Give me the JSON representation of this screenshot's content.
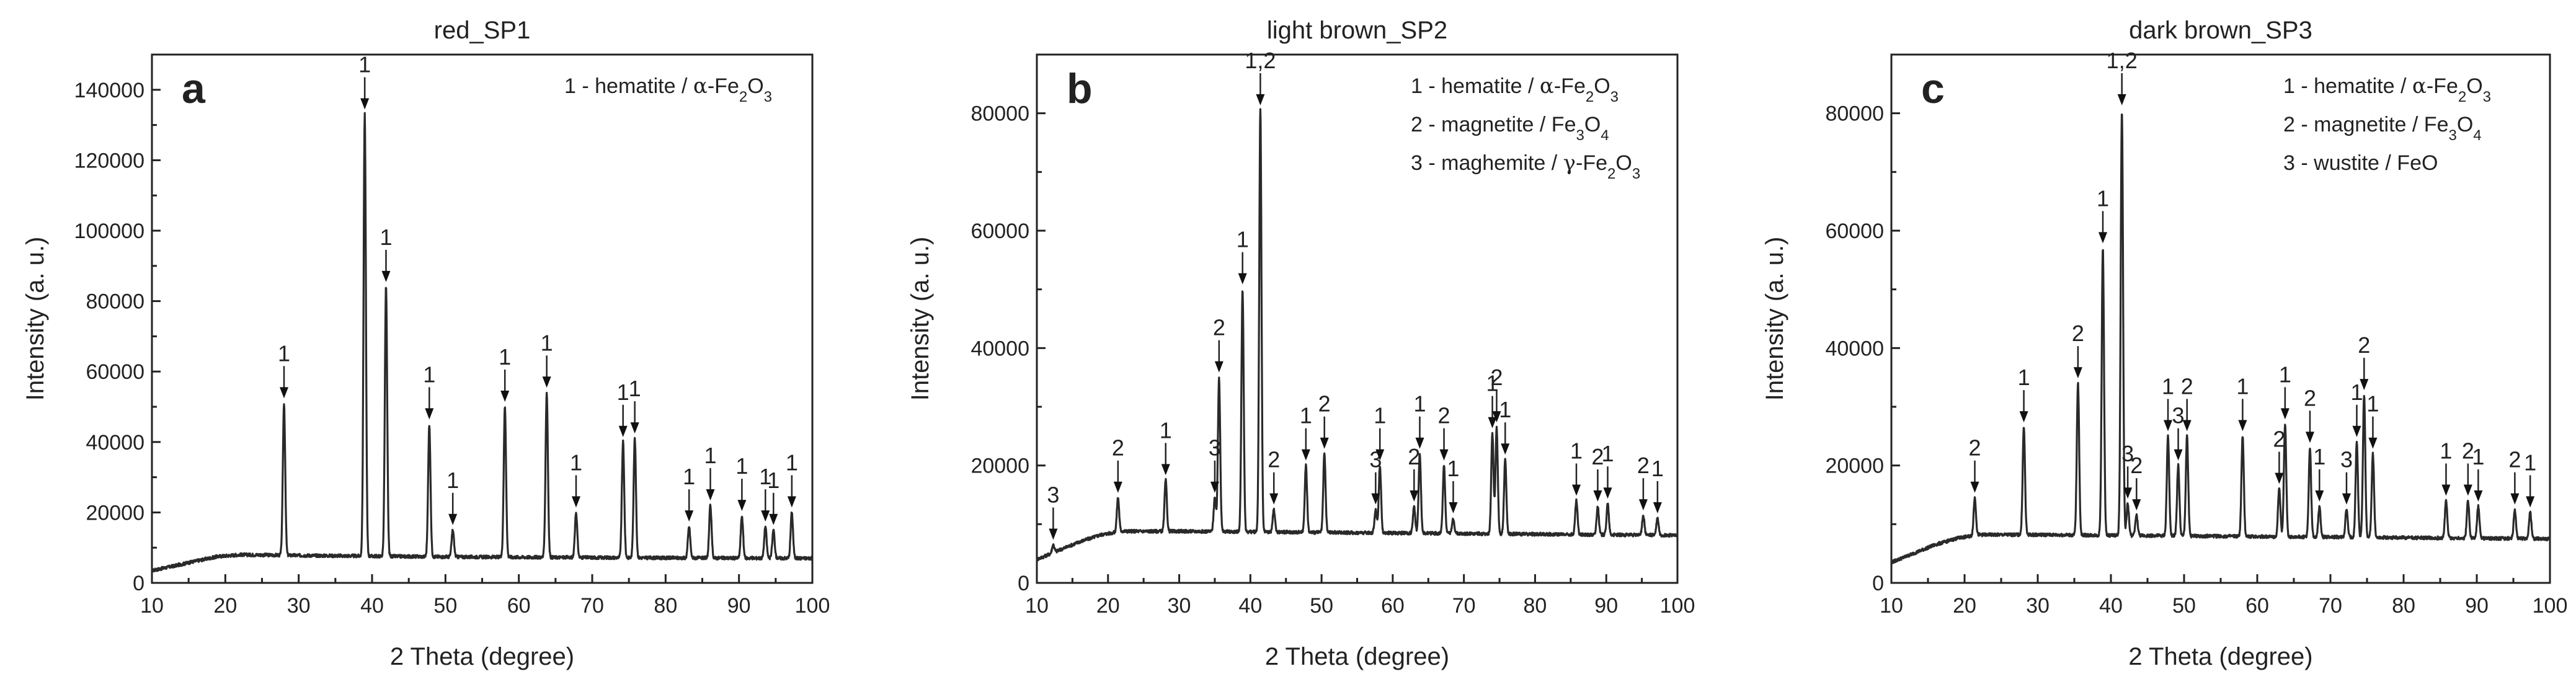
{
  "chart_data": [
    {
      "type": "line",
      "panel_letter": "a",
      "title": "red_SP1",
      "xlabel": "2 Theta (degree)",
      "ylabel": "Intensity (a. u.)",
      "xlim": [
        10,
        100
      ],
      "ylim": [
        0,
        150000
      ],
      "xticks": [
        10,
        20,
        30,
        40,
        50,
        60,
        70,
        80,
        90,
        100
      ],
      "yticks": [
        0,
        20000,
        40000,
        60000,
        80000,
        100000,
        120000,
        140000
      ],
      "background": [
        [
          10,
          3500
        ],
        [
          13,
          4800
        ],
        [
          16,
          6200
        ],
        [
          19,
          7500
        ],
        [
          22,
          8000
        ],
        [
          30,
          7800
        ],
        [
          40,
          7600
        ],
        [
          50,
          7400
        ],
        [
          60,
          7300
        ],
        [
          70,
          7200
        ],
        [
          80,
          7100
        ],
        [
          90,
          7050
        ],
        [
          100,
          7000
        ]
      ],
      "peaks": [
        {
          "x": 28.0,
          "y": 51000,
          "label": "1"
        },
        {
          "x": 39.0,
          "y": 133000,
          "label": "1"
        },
        {
          "x": 41.9,
          "y": 84000,
          "label": "1"
        },
        {
          "x": 47.8,
          "y": 45000,
          "label": "1"
        },
        {
          "x": 51.0,
          "y": 15000,
          "label": "1"
        },
        {
          "x": 58.1,
          "y": 50000,
          "label": "1"
        },
        {
          "x": 63.8,
          "y": 54000,
          "label": "1"
        },
        {
          "x": 67.8,
          "y": 20000,
          "label": "1"
        },
        {
          "x": 74.2,
          "y": 40000,
          "label": "1"
        },
        {
          "x": 75.8,
          "y": 41000,
          "label": "1"
        },
        {
          "x": 83.2,
          "y": 16000,
          "label": "1"
        },
        {
          "x": 86.1,
          "y": 22000,
          "label": "1"
        },
        {
          "x": 90.4,
          "y": 19000,
          "label": "1"
        },
        {
          "x": 93.6,
          "y": 16000,
          "label": "1"
        },
        {
          "x": 94.7,
          "y": 15000,
          "label": "1"
        },
        {
          "x": 97.2,
          "y": 20000,
          "label": "1"
        }
      ],
      "legend": [
        {
          "num": "1",
          "text": " - hematite / ",
          "greek": "α",
          "formula": [
            [
              "-Fe",
              ""
            ],
            [
              "2",
              "sub"
            ],
            [
              "O",
              ""
            ],
            [
              "3",
              "sub"
            ]
          ]
        }
      ]
    },
    {
      "type": "line",
      "panel_letter": "b",
      "title": "light brown_SP2",
      "xlabel": "2 Theta (degree)",
      "ylabel": "Intensity (a. u.)",
      "xlim": [
        10,
        100
      ],
      "ylim": [
        0,
        90000
      ],
      "xticks": [
        10,
        20,
        30,
        40,
        50,
        60,
        70,
        80,
        90,
        100
      ],
      "yticks": [
        0,
        20000,
        40000,
        60000,
        80000
      ],
      "background": [
        [
          10,
          4000
        ],
        [
          13,
          5500
        ],
        [
          16,
          7000
        ],
        [
          19,
          8200
        ],
        [
          22,
          8800
        ],
        [
          30,
          8800
        ],
        [
          40,
          8700
        ],
        [
          50,
          8600
        ],
        [
          60,
          8500
        ],
        [
          70,
          8400
        ],
        [
          80,
          8300
        ],
        [
          90,
          8200
        ],
        [
          100,
          8100
        ]
      ],
      "peaks": [
        {
          "x": 12.3,
          "y": 6500,
          "label": "3"
        },
        {
          "x": 21.4,
          "y": 14500,
          "label": "2"
        },
        {
          "x": 28.1,
          "y": 17500,
          "label": "1"
        },
        {
          "x": 35.0,
          "y": 14500,
          "label": "3"
        },
        {
          "x": 35.6,
          "y": 35000,
          "label": "2"
        },
        {
          "x": 38.9,
          "y": 50000,
          "label": "1"
        },
        {
          "x": 41.4,
          "y": 80500,
          "label": "1,2"
        },
        {
          "x": 43.3,
          "y": 12500,
          "label": "2"
        },
        {
          "x": 47.8,
          "y": 20000,
          "label": "1"
        },
        {
          "x": 50.4,
          "y": 22000,
          "label": "2"
        },
        {
          "x": 57.6,
          "y": 12500,
          "label": "3"
        },
        {
          "x": 58.2,
          "y": 20000,
          "label": "1"
        },
        {
          "x": 63.0,
          "y": 13000,
          "label": "2"
        },
        {
          "x": 63.8,
          "y": 22000,
          "label": "1"
        },
        {
          "x": 67.2,
          "y": 20000,
          "label": "2"
        },
        {
          "x": 68.5,
          "y": 11000,
          "label": "1"
        },
        {
          "x": 74.0,
          "y": 25500,
          "label": "1"
        },
        {
          "x": 74.6,
          "y": 26500,
          "label": "2"
        },
        {
          "x": 75.8,
          "y": 21000,
          "label": "1"
        },
        {
          "x": 85.8,
          "y": 14000,
          "label": "1"
        },
        {
          "x": 88.8,
          "y": 13000,
          "label": "2"
        },
        {
          "x": 90.2,
          "y": 13500,
          "label": "1"
        },
        {
          "x": 95.2,
          "y": 11500,
          "label": "2"
        },
        {
          "x": 97.2,
          "y": 11000,
          "label": "1"
        }
      ],
      "legend": [
        {
          "num": "1",
          "text": " - hematite / ",
          "greek": "α",
          "formula": [
            [
              "-Fe",
              ""
            ],
            [
              "2",
              "sub"
            ],
            [
              "O",
              ""
            ],
            [
              "3",
              "sub"
            ]
          ]
        },
        {
          "num": "2",
          "text": " - magnetite / ",
          "greek": "",
          "formula": [
            [
              "Fe",
              ""
            ],
            [
              "3",
              "sub"
            ],
            [
              "O",
              ""
            ],
            [
              "4",
              "sub"
            ]
          ]
        },
        {
          "num": "3",
          "text": " - maghemite / ",
          "greek": "γ",
          "formula": [
            [
              "-Fe",
              ""
            ],
            [
              "2",
              "sub"
            ],
            [
              "O",
              ""
            ],
            [
              "3",
              "sub"
            ]
          ]
        }
      ]
    },
    {
      "type": "line",
      "panel_letter": "c",
      "title": "dark brown_SP3",
      "xlabel": "2 Theta (degree)",
      "ylabel": "Intensity (a. u.)",
      "xlim": [
        10,
        100
      ],
      "ylim": [
        0,
        90000
      ],
      "xticks": [
        10,
        20,
        30,
        40,
        50,
        60,
        70,
        80,
        90,
        100
      ],
      "yticks": [
        0,
        20000,
        40000,
        60000,
        80000
      ],
      "background": [
        [
          10,
          3500
        ],
        [
          13,
          5000
        ],
        [
          16,
          6500
        ],
        [
          19,
          7600
        ],
        [
          22,
          8200
        ],
        [
          30,
          8200
        ],
        [
          40,
          8100
        ],
        [
          50,
          8000
        ],
        [
          60,
          7900
        ],
        [
          70,
          7800
        ],
        [
          80,
          7700
        ],
        [
          90,
          7600
        ],
        [
          100,
          7500
        ]
      ],
      "peaks": [
        {
          "x": 21.4,
          "y": 14500,
          "label": "2"
        },
        {
          "x": 28.1,
          "y": 26500,
          "label": "1"
        },
        {
          "x": 35.5,
          "y": 34000,
          "label": "2"
        },
        {
          "x": 38.9,
          "y": 57000,
          "label": "1"
        },
        {
          "x": 41.5,
          "y": 80500,
          "label": "1,2"
        },
        {
          "x": 42.3,
          "y": 13500,
          "label": "3"
        },
        {
          "x": 43.5,
          "y": 11500,
          "label": "2"
        },
        {
          "x": 47.8,
          "y": 25000,
          "label": "1"
        },
        {
          "x": 49.2,
          "y": 20000,
          "label": "3"
        },
        {
          "x": 50.4,
          "y": 25000,
          "label": "2"
        },
        {
          "x": 58.0,
          "y": 25000,
          "label": "1"
        },
        {
          "x": 63.0,
          "y": 16000,
          "label": "2"
        },
        {
          "x": 63.8,
          "y": 27000,
          "label": "1"
        },
        {
          "x": 67.2,
          "y": 23000,
          "label": "2"
        },
        {
          "x": 68.5,
          "y": 13000,
          "label": "1"
        },
        {
          "x": 72.2,
          "y": 12500,
          "label": "3"
        },
        {
          "x": 73.6,
          "y": 24000,
          "label": "1"
        },
        {
          "x": 74.6,
          "y": 32000,
          "label": "2"
        },
        {
          "x": 75.8,
          "y": 22000,
          "label": "1"
        },
        {
          "x": 85.8,
          "y": 14000,
          "label": "1"
        },
        {
          "x": 88.8,
          "y": 14000,
          "label": "2"
        },
        {
          "x": 90.2,
          "y": 13000,
          "label": "1"
        },
        {
          "x": 95.2,
          "y": 12500,
          "label": "2"
        },
        {
          "x": 97.3,
          "y": 12000,
          "label": "1"
        }
      ],
      "legend": [
        {
          "num": "1",
          "text": " - hematite / ",
          "greek": "α",
          "formula": [
            [
              "-Fe",
              ""
            ],
            [
              "2",
              "sub"
            ],
            [
              "O",
              ""
            ],
            [
              "3",
              "sub"
            ]
          ]
        },
        {
          "num": "2",
          "text": " - magnetite / ",
          "greek": "",
          "formula": [
            [
              "Fe",
              ""
            ],
            [
              "3",
              "sub"
            ],
            [
              "O",
              ""
            ],
            [
              "4",
              "sub"
            ]
          ]
        },
        {
          "num": "3",
          "text": " - wustite / FeO",
          "greek": "",
          "formula": []
        }
      ]
    }
  ]
}
